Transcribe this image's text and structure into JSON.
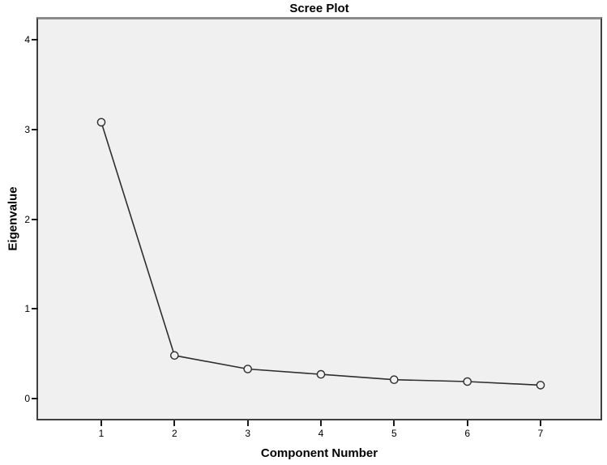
{
  "chart_data": {
    "type": "line",
    "title": "Scree Plot",
    "xlabel": "Component Number",
    "ylabel": "Eigenvalue",
    "categories": [
      1,
      2,
      3,
      4,
      5,
      6,
      7
    ],
    "series": [
      {
        "name": "Eigenvalue",
        "values": [
          3.08,
          0.48,
          0.33,
          0.27,
          0.21,
          0.19,
          0.15
        ]
      }
    ],
    "x_ticks": [
      1,
      2,
      3,
      4,
      5,
      6,
      7
    ],
    "y_ticks": [
      0,
      1,
      2,
      3,
      4
    ],
    "ylim": [
      0,
      4
    ],
    "grid": false,
    "legend": "none",
    "marker": "open-circle"
  },
  "colors": {
    "page_background": "#ffffff",
    "plot_background": "#f0f0f0",
    "line": "#2e2e2e",
    "marker_stroke": "#2e2e2e",
    "marker_fill": "#f0f0f0",
    "axis_tick": "#1a1a1a",
    "text": "#000000",
    "frame_border": "#404040",
    "frame_top": "#8b8b8b"
  }
}
